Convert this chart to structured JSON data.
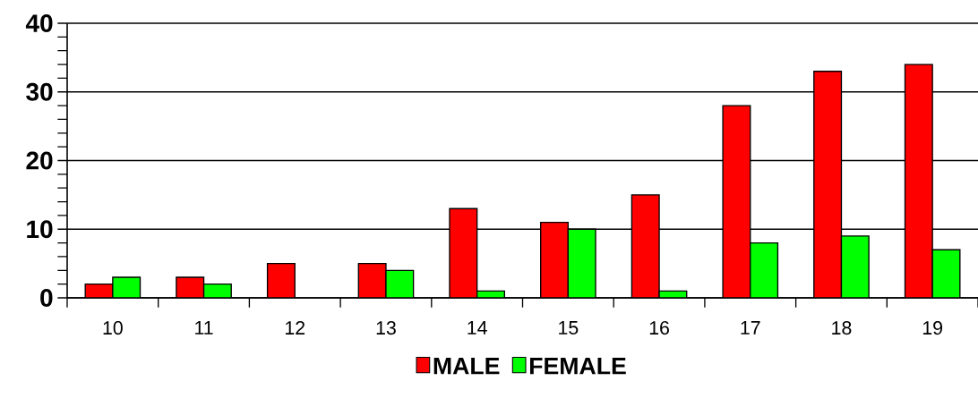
{
  "chart_data": {
    "type": "bar",
    "categories": [
      "10",
      "11",
      "12",
      "13",
      "14",
      "15",
      "16",
      "17",
      "18",
      "19"
    ],
    "series": [
      {
        "name": "MALE",
        "color": "#ff0000",
        "values": [
          2,
          3,
          5,
          5,
          13,
          11,
          15,
          28,
          33,
          34
        ]
      },
      {
        "name": "FEMALE",
        "color": "#00ff00",
        "values": [
          3,
          2,
          null,
          4,
          1,
          10,
          1,
          8,
          9,
          7
        ]
      }
    ],
    "ylim": [
      0,
      40
    ],
    "yticks": [
      0,
      10,
      20,
      30,
      40
    ],
    "grid": "y",
    "legend": "bottom"
  }
}
